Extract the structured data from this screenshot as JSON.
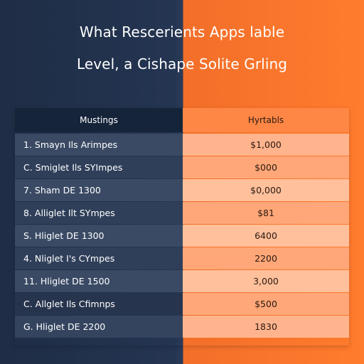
{
  "page": {
    "title_line_1": "What Rescerients Apps lable",
    "title_line_2": "Level, a Cishape Solite Grling"
  },
  "table": {
    "headers": {
      "left": "Mustings",
      "right": "Hyrtabls"
    },
    "rows": [
      {
        "left": "1. Smayn Ils Arimpes",
        "right": "$1,000"
      },
      {
        "left": "C. Smiglet Ils SYImpes",
        "right": "$000"
      },
      {
        "left": "7. Sham DE 1300",
        "right": "$0,000"
      },
      {
        "left": "8. Alliglet Ilt SYmpes",
        "right": "$81"
      },
      {
        "left": "S. Hliglet DE 1300",
        "right": "6400"
      },
      {
        "left": "4. Nliglet I's CYmpes",
        "right": "2200"
      },
      {
        "left": "11. Hliglet DE 1500",
        "right": "3,000"
      },
      {
        "left": "C. Allglet Ils Cfimnps",
        "right": "$500"
      },
      {
        "left": "G. Hliglet DE 2200",
        "right": "1830"
      }
    ]
  },
  "colors": {
    "left_background": "#243552",
    "right_background": "#ff7b2d",
    "header_left": "#16243a",
    "header_right": "#ff8745"
  }
}
